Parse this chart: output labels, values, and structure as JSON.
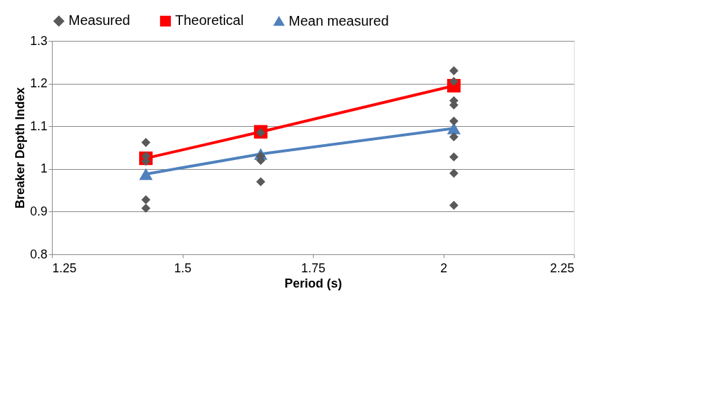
{
  "chart_data": {
    "type": "scatter",
    "xlabel": "Period (s)",
    "ylabel": "Breaker Depth Index",
    "xlim": [
      1.25,
      2.25
    ],
    "xticks": [
      1.25,
      1.5,
      1.75,
      2,
      2.25
    ],
    "ylim": [
      0.8,
      1.3
    ],
    "yticks": [
      0.8,
      0.9,
      1,
      1.1,
      1.2,
      1.3
    ],
    "grid": "y",
    "legend": "top",
    "series": [
      {
        "name": "Measured",
        "marker": "diamond",
        "color": "#595959",
        "x": [
          1.43,
          1.43,
          1.43,
          1.43,
          1.43,
          1.65,
          1.65,
          1.65,
          1.65,
          2.02,
          2.02,
          2.02,
          2.02,
          2.02,
          2.02,
          2.02,
          2.02,
          2.02
        ],
        "values": [
          1.062,
          1.03,
          1.018,
          0.928,
          0.908,
          1.085,
          1.03,
          1.02,
          0.97,
          1.23,
          1.205,
          1.16,
          1.15,
          1.112,
          1.075,
          1.028,
          0.99,
          0.915
        ]
      },
      {
        "name": "Theoretical",
        "type": "line",
        "marker": "square",
        "color": "#ff0000",
        "x": [
          1.43,
          1.65,
          2.02
        ],
        "values": [
          1.025,
          1.087,
          1.195
        ]
      },
      {
        "name": "Mean measured",
        "type": "line",
        "marker": "triangle",
        "color": "#4f81bd",
        "x": [
          1.43,
          1.65,
          2.02
        ],
        "values": [
          0.988,
          1.035,
          1.095
        ]
      }
    ]
  }
}
